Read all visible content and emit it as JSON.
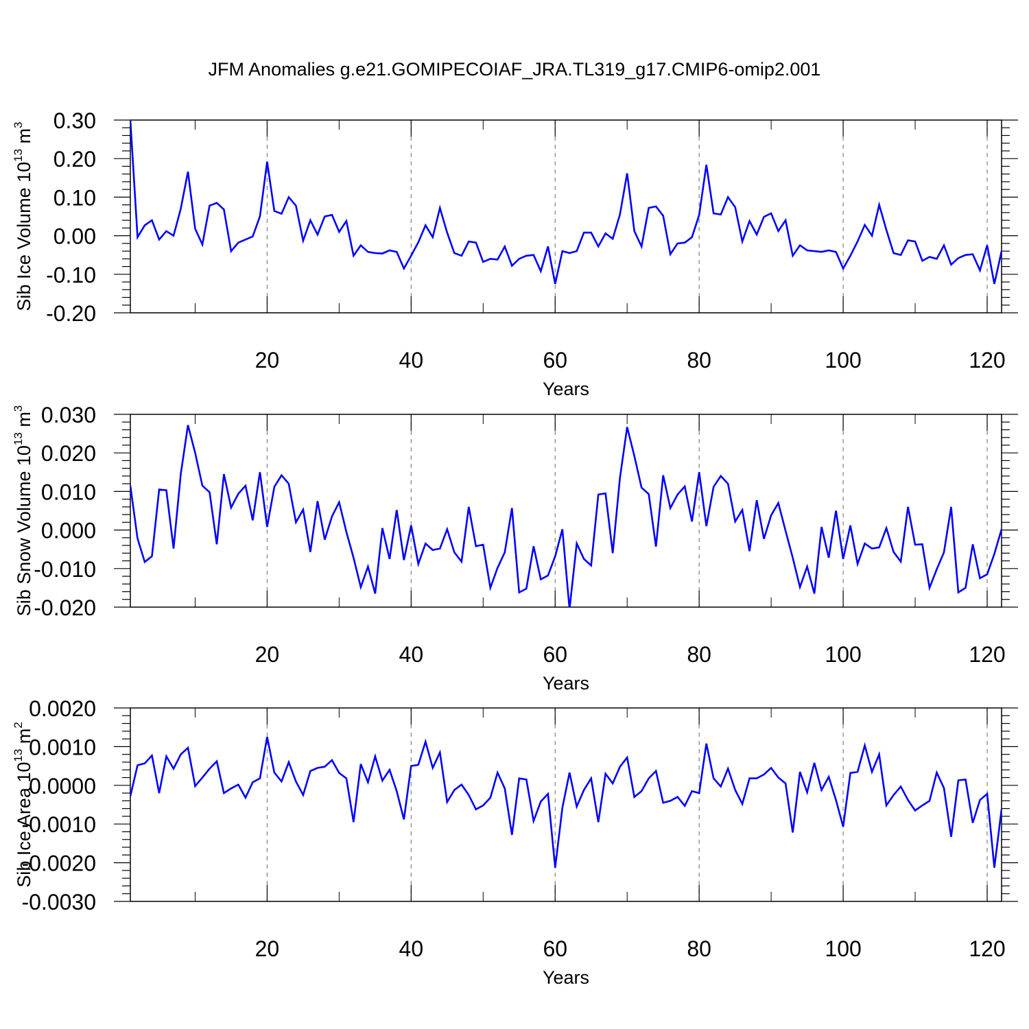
{
  "title": "JFM Anomalies g.e21.GOMIPECOIAF_JRA.TL319_g17.CMIP6-omip2.001",
  "colors": {
    "line": "#0000ff",
    "axis": "#000000",
    "grid": "#808080"
  },
  "chart_data": [
    {
      "type": "line",
      "xlabel": "Years",
      "ylabel": "Sib Ice Volume 10",
      "ylabel_sup": "13",
      "ylabel_unit": "m",
      "ylabel_unit_sup": "3",
      "xlim": [
        1,
        122
      ],
      "ylim": [
        -0.2,
        0.3
      ],
      "xticks": [
        20,
        40,
        60,
        80,
        100,
        120
      ],
      "xtick_labels": [
        "20",
        "40",
        "60",
        "80",
        "100",
        "120"
      ],
      "yticks": [
        0.3,
        0.2,
        0.1,
        0.0,
        -0.1,
        -0.2
      ],
      "ytick_labels": [
        "0.30",
        "0.20",
        "0.10",
        "0.00",
        "-0.10",
        "-0.20"
      ],
      "grid": "vertical dashed at major x ticks",
      "series": [
        {
          "x_start": 1,
          "values": [
            0.3,
            -0.004,
            0.027,
            0.04,
            -0.01,
            0.012,
            0.0,
            0.07,
            0.166,
            0.018,
            -0.023,
            0.078,
            0.085,
            0.068,
            -0.04,
            -0.018,
            -0.01,
            -0.002,
            0.05,
            0.192,
            0.064,
            0.057,
            0.1,
            0.078,
            -0.013,
            0.04,
            0.003,
            0.05,
            0.054,
            0.01,
            0.038,
            -0.052,
            -0.025,
            -0.042,
            -0.045,
            -0.046,
            -0.038,
            -0.042,
            -0.085,
            -0.052,
            -0.017,
            0.027,
            -0.004,
            0.072,
            0.008,
            -0.045,
            -0.052,
            -0.015,
            -0.018,
            -0.068,
            -0.06,
            -0.062,
            -0.028,
            -0.078,
            -0.06,
            -0.052,
            -0.05,
            -0.092,
            -0.028,
            -0.125,
            -0.04,
            -0.045,
            -0.04,
            0.008,
            0.008,
            -0.028,
            0.006,
            -0.008,
            0.055,
            0.162,
            0.012,
            -0.028,
            0.072,
            0.076,
            0.052,
            -0.048,
            -0.02,
            -0.018,
            -0.004,
            0.054,
            0.184,
            0.058,
            0.055,
            0.1,
            0.074,
            -0.015,
            0.038,
            0.003,
            0.049,
            0.058,
            0.012,
            0.04,
            -0.052,
            -0.025,
            -0.038,
            -0.04,
            -0.042,
            -0.038,
            -0.042,
            -0.085,
            -0.052,
            -0.015,
            0.028,
            0.0,
            0.08,
            0.015,
            -0.045,
            -0.05,
            -0.012,
            -0.015,
            -0.065,
            -0.055,
            -0.06,
            -0.025,
            -0.075,
            -0.058,
            -0.05,
            -0.048,
            -0.09,
            -0.025,
            -0.125,
            -0.04
          ]
        }
      ]
    },
    {
      "type": "line",
      "xlabel": "Years",
      "ylabel": "Sib Snow Volume 10",
      "ylabel_sup": "13",
      "ylabel_unit": "m",
      "ylabel_unit_sup": "3",
      "xlim": [
        1,
        122
      ],
      "ylim": [
        -0.02,
        0.03
      ],
      "xticks": [
        20,
        40,
        60,
        80,
        100,
        120
      ],
      "xtick_labels": [
        "20",
        "40",
        "60",
        "80",
        "100",
        "120"
      ],
      "yticks": [
        0.03,
        0.02,
        0.01,
        0.0,
        -0.01,
        -0.02
      ],
      "ytick_labels": [
        "0.030",
        "0.020",
        "0.010",
        "0.000",
        "-0.010",
        "-0.020"
      ],
      "grid": "vertical dashed at major x ticks",
      "series": [
        {
          "x_start": 1,
          "values": [
            0.0115,
            -0.0022,
            -0.0083,
            -0.0068,
            0.0105,
            0.0103,
            -0.0048,
            0.0145,
            0.0272,
            0.02,
            0.0115,
            0.0098,
            -0.0037,
            0.0145,
            0.0058,
            0.0094,
            0.0115,
            0.0025,
            0.015,
            0.0008,
            0.0112,
            0.0142,
            0.012,
            0.002,
            0.0053,
            -0.0057,
            0.0075,
            -0.0025,
            0.0035,
            0.0072,
            -0.0005,
            -0.0072,
            -0.0148,
            -0.0095,
            -0.0165,
            0.0005,
            -0.0075,
            0.0052,
            -0.0078,
            0.0012,
            -0.0088,
            -0.0035,
            -0.0052,
            -0.0048,
            0.0002,
            -0.0058,
            -0.0082,
            0.006,
            -0.0042,
            -0.0038,
            -0.015,
            -0.0098,
            -0.0058,
            0.0057,
            -0.0162,
            -0.0152,
            -0.0042,
            -0.0128,
            -0.0118,
            -0.0068,
            0.0002,
            -0.0205,
            -0.0035,
            -0.0075,
            -0.0092,
            0.0092,
            0.0095,
            -0.006,
            0.0135,
            0.0267,
            0.0192,
            0.011,
            0.0093,
            -0.0043,
            0.0142,
            0.0057,
            0.0092,
            0.0113,
            0.0022,
            0.015,
            0.001,
            0.0112,
            0.014,
            0.012,
            0.0022,
            0.0052,
            -0.0055,
            0.0077,
            -0.0023,
            0.0038,
            0.007,
            -0.0002,
            -0.0072,
            -0.0148,
            -0.0095,
            -0.0165,
            0.0008,
            -0.0072,
            0.005,
            -0.0075,
            0.0012,
            -0.0088,
            -0.0035,
            -0.0048,
            -0.0045,
            0.0005,
            -0.0057,
            -0.0082,
            0.006,
            -0.0038,
            -0.0037,
            -0.015,
            -0.0102,
            -0.0058,
            0.006,
            -0.0162,
            -0.015,
            -0.0037,
            -0.0125,
            -0.0115,
            -0.0062,
            0.0002
          ]
        }
      ]
    },
    {
      "type": "line",
      "xlabel": "Years",
      "ylabel": "Sib Ice Area 10",
      "ylabel_sup": "13",
      "ylabel_unit": "m",
      "ylabel_unit_sup": "2",
      "xlim": [
        1,
        122
      ],
      "ylim": [
        -0.003,
        0.002
      ],
      "xticks": [
        20,
        40,
        60,
        80,
        100,
        120
      ],
      "xtick_labels": [
        "20",
        "40",
        "60",
        "80",
        "100",
        "120"
      ],
      "yticks": [
        0.002,
        0.001,
        0.0,
        -0.001,
        -0.002,
        -0.003
      ],
      "ytick_labels": [
        "0.0020",
        "0.0010",
        "0.0000",
        "-0.0010",
        "-0.0020",
        "-0.0030"
      ],
      "grid": "vertical dashed at major x ticks",
      "series": [
        {
          "x_start": 1,
          "values": [
            -0.00028,
            0.00052,
            0.00057,
            0.00077,
            -0.0002,
            0.00075,
            0.00043,
            0.0008,
            0.00097,
            -2e-05,
            0.0002,
            0.00043,
            0.00062,
            -0.0002,
            -8e-05,
            2e-05,
            -0.00032,
            8e-05,
            0.00018,
            0.00125,
            0.00033,
            0.0001,
            0.0006,
            0.0001,
            -0.00025,
            0.00037,
            0.00045,
            0.00048,
            0.00065,
            0.00032,
            0.00018,
            -0.00095,
            0.00055,
            8e-05,
            0.00075,
            0.00012,
            0.0004,
            -0.00015,
            -0.00088,
            0.0005,
            0.00053,
            0.00113,
            0.00045,
            0.00085,
            -0.00043,
            -0.00012,
            2e-05,
            -0.00025,
            -0.00062,
            -0.00052,
            -0.00032,
            0.00033,
            -8e-05,
            -0.00128,
            0.00018,
            0.00015,
            -0.00092,
            -0.00042,
            -0.00022,
            -0.00213,
            -0.00058,
            0.00033,
            -0.00055,
            -0.00012,
            0.00018,
            -0.00095,
            0.0003,
            5e-05,
            0.00048,
            0.00072,
            -0.0003,
            -0.00015,
            0.00018,
            0.00037,
            -0.00045,
            -0.0004,
            -0.0003,
            -0.00053,
            -0.00015,
            -0.0002,
            0.00108,
            0.00018,
            -3e-05,
            0.00043,
            -0.00012,
            -0.00048,
            0.00018,
            0.00018,
            0.00028,
            0.00045,
            0.0002,
            5e-05,
            -0.00122,
            0.00035,
            -0.00018,
            0.00058,
            -0.00012,
            0.00022,
            -0.00038,
            -0.00107,
            0.00032,
            0.00035,
            0.00103,
            0.00035,
            0.0008,
            -0.00052,
            -0.00025,
            -3e-05,
            -0.00038,
            -0.00065,
            -0.00052,
            -0.0004,
            0.00033,
            -7e-05,
            -0.00133,
            0.00013,
            0.00015,
            -0.00097,
            -0.00038,
            -0.00022,
            -0.00213,
            -0.00062
          ]
        }
      ]
    }
  ]
}
